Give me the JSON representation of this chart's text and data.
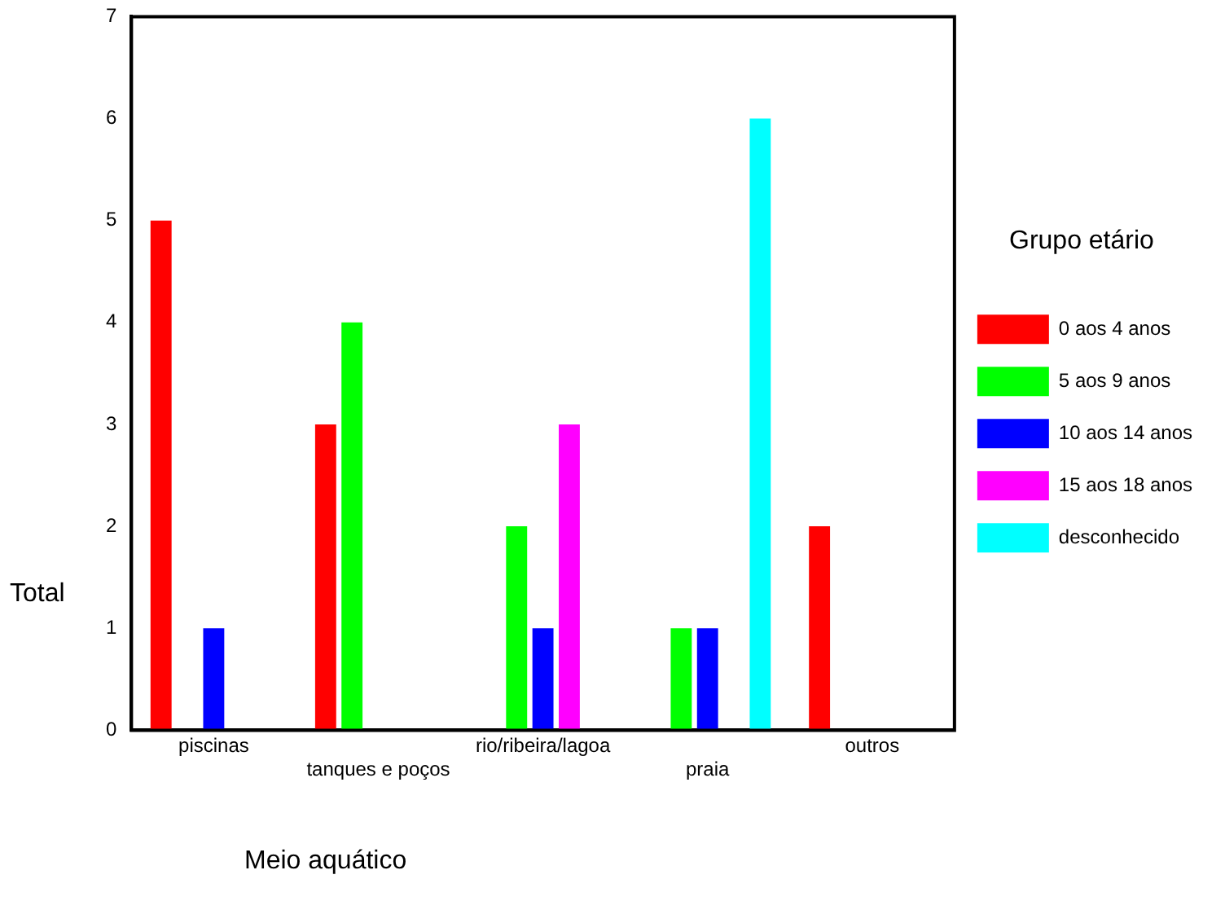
{
  "chart_data": {
    "type": "bar",
    "xlabel": "Meio aquático",
    "ylabel": "Total",
    "legend_title": "Grupo etário",
    "legend": "right",
    "grid": false,
    "categories": [
      "piscinas",
      "tanques e poços",
      "rio/ribeira/lagoa",
      "praia",
      "outros"
    ],
    "ylim": [
      0,
      7
    ],
    "yticks": [
      0,
      1,
      2,
      3,
      4,
      5,
      6,
      7
    ],
    "series": [
      {
        "name": "0 aos 4 anos",
        "color": "#ff0000",
        "values": [
          5,
          3,
          null,
          null,
          2
        ]
      },
      {
        "name": "5 aos 9 anos",
        "color": "#00ff00",
        "values": [
          null,
          4,
          2,
          1,
          null
        ]
      },
      {
        "name": "10 aos 14 anos",
        "color": "#0000ff",
        "values": [
          1,
          null,
          1,
          1,
          null
        ]
      },
      {
        "name": "15 aos 18 anos",
        "color": "#ff00ff",
        "values": [
          null,
          null,
          3,
          null,
          null
        ]
      },
      {
        "name": "desconhecido",
        "color": "#00ffff",
        "values": [
          null,
          null,
          null,
          6,
          null
        ]
      }
    ]
  }
}
